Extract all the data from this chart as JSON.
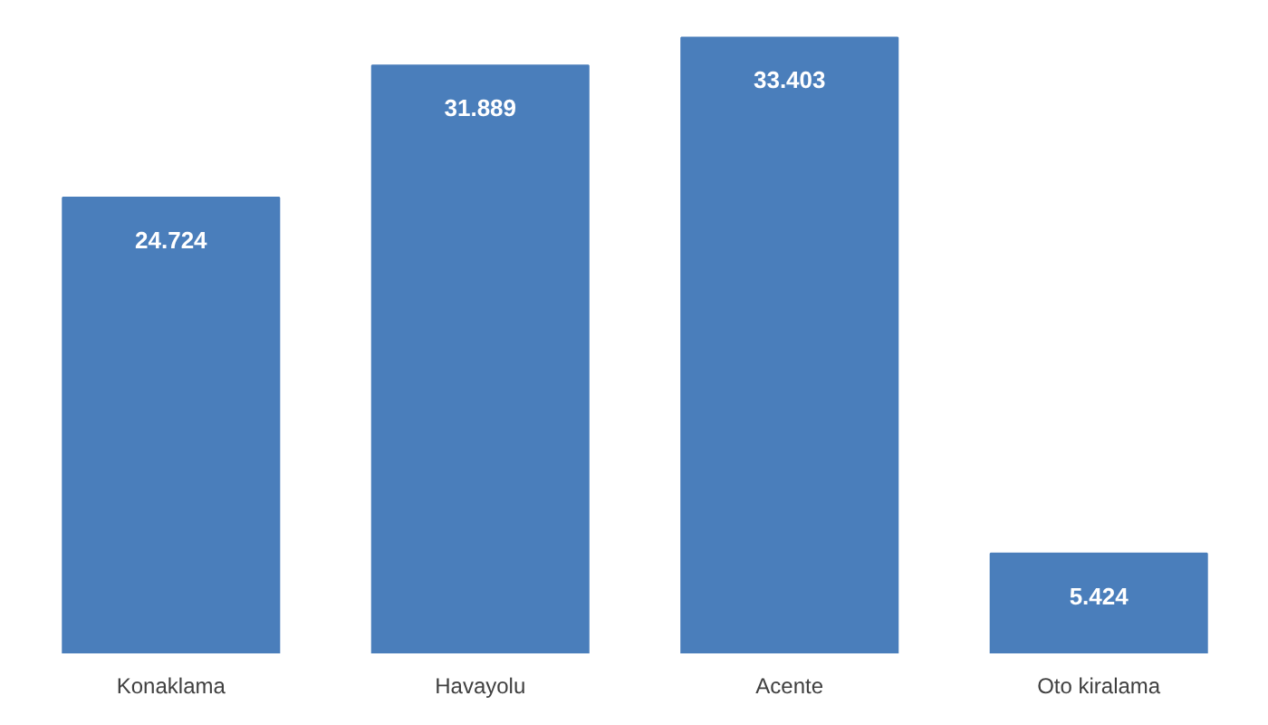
{
  "chart_data": {
    "type": "bar",
    "categories": [
      "Konaklama",
      "Havayolu",
      "Acente",
      "Oto kiralama"
    ],
    "values": [
      24724,
      31889,
      33403,
      5424
    ],
    "value_labels": [
      "24.724",
      "31.889",
      "33.403",
      "5.424"
    ],
    "color": "#4a7ebb",
    "grid": false
  }
}
